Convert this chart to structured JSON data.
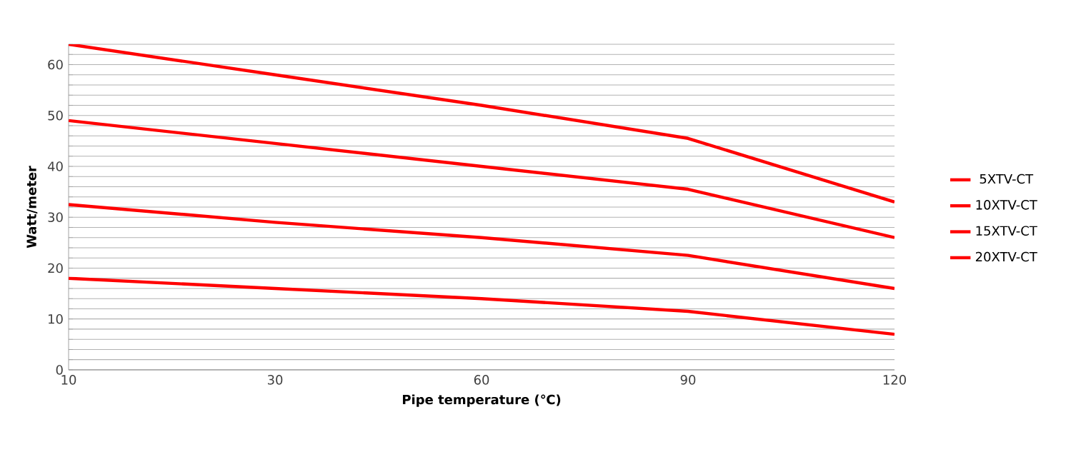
{
  "chart_data": {
    "type": "line",
    "xlabel": "Pipe temperature (℃)",
    "ylabel": "Watt/meter",
    "categories": [
      "10",
      "30",
      "60",
      "90",
      "120"
    ],
    "series": [
      {
        "name": "5XTV-CT",
        "color": "#ff0000",
        "values": [
          64,
          58,
          52,
          45.5,
          33
        ]
      },
      {
        "name": "10XTV-CT",
        "color": "#ff0000",
        "values": [
          49,
          44.5,
          40,
          35.5,
          26
        ]
      },
      {
        "name": "15XTV-CT",
        "color": "#ff0000",
        "values": [
          32.5,
          29,
          26,
          22.5,
          16
        ]
      },
      {
        "name": "20XTV-CT",
        "color": "#ff0000",
        "values": [
          18,
          16,
          14,
          11.5,
          7
        ]
      }
    ],
    "ylim": [
      0,
      64
    ],
    "yticks": [
      0,
      {
        "value": 2,
        "label": null
      },
      {
        "value": 4,
        "label": null
      },
      {
        "value": 6,
        "label": null
      },
      {
        "value": 8,
        "label": null
      },
      10,
      {
        "value": 12,
        "label": null
      },
      {
        "value": 14,
        "label": null
      },
      {
        "value": 16,
        "label": null
      },
      {
        "value": 18,
        "label": null
      },
      20,
      {
        "value": 22,
        "label": null
      },
      {
        "value": 24,
        "label": null
      },
      {
        "value": 26,
        "label": null
      },
      {
        "value": 28,
        "label": null
      },
      30,
      {
        "value": 32,
        "label": null
      },
      {
        "value": 34,
        "label": null
      },
      {
        "value": 36,
        "label": null
      },
      {
        "value": 38,
        "label": null
      },
      40,
      {
        "value": 42,
        "label": null
      },
      {
        "value": 44,
        "label": null
      },
      {
        "value": 46,
        "label": null
      },
      {
        "value": 48,
        "label": null
      },
      50,
      {
        "value": 52,
        "label": null
      },
      {
        "value": 54,
        "label": null
      },
      {
        "value": 56,
        "label": null
      },
      {
        "value": 58,
        "label": null
      },
      60,
      {
        "value": 62,
        "label": null
      },
      {
        "value": 64,
        "label": null
      }
    ],
    "grid": "y",
    "legend": "right",
    "marker": "none",
    "line_style": "solid"
  }
}
